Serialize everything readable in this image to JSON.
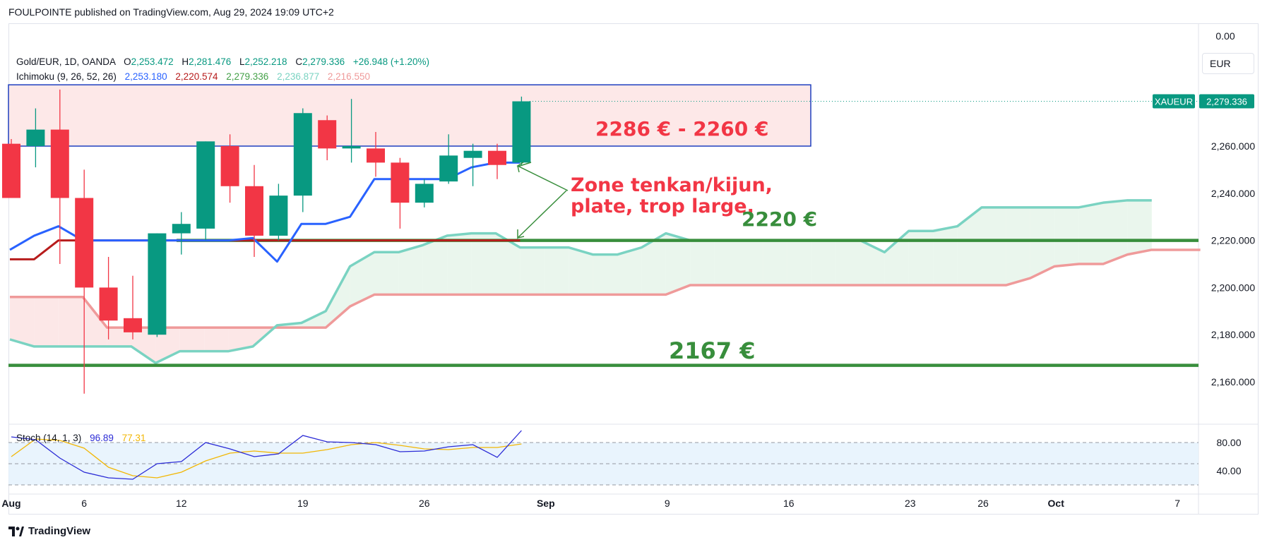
{
  "header": {
    "published_text": "FOULPOINTE published on TradingView.com, Aug 29, 2024 19:09 UTC+2"
  },
  "legend": {
    "symbol": "Gold/EUR, 1D, OANDA",
    "o_label": "O",
    "o_value": "2,253.472",
    "h_label": "H",
    "h_value": "2,281.476",
    "l_label": "L",
    "l_value": "2,252.218",
    "c_label": "C",
    "c_value": "2,279.336",
    "change": "+26.948 (+1.20%)",
    "ichimoku_label": "Ichimoku (9, 26, 52, 26)",
    "ichimoku_values": [
      "2,253.180",
      "2,220.574",
      "2,279.336",
      "2,236.877",
      "2,216.550"
    ],
    "stoch_label": "Stoch (14, 1, 3)",
    "stoch_values": [
      "96.89",
      "77.31"
    ]
  },
  "currency_button": "EUR",
  "price_tag": {
    "symbol": "XAUEUR",
    "value": "2,279.336"
  },
  "top_axis_value": "0.00",
  "annotations": {
    "zone_label": "2286 € - 2260 €",
    "comment_line1": "Zone tenkan/kijun,",
    "comment_line2": "plate, trop large.",
    "level_2220": "2220 €",
    "level_2167": "2167 €"
  },
  "footer": {
    "brand": "TradingView"
  },
  "colors": {
    "up": "#089981",
    "down": "#f23645",
    "tenkan": "#2962ff",
    "kijun": "#b71c1c",
    "chikou": "#43a047",
    "span_a": "#7ad3c2",
    "span_b": "#ef9a9a",
    "level": "#388e3c",
    "zone_border": "#1e3fbf",
    "zone_fill": "#fde4e4",
    "stoch_k": "#2b2bd6",
    "stoch_d": "#f2b705"
  },
  "chart_data": {
    "type": "candlestick",
    "price_axis": {
      "ticks": [
        "2,260.000",
        "2,240.000",
        "2,220.000",
        "2,200.000",
        "2,180.000",
        "2,160.000"
      ],
      "tick_values": [
        2260,
        2240,
        2220,
        2200,
        2180,
        2160
      ],
      "ylim": [
        2143,
        2290
      ]
    },
    "x_axis": {
      "labels": [
        {
          "text": "Aug",
          "index": 0,
          "bold": true
        },
        {
          "text": "6",
          "index": 3
        },
        {
          "text": "12",
          "index": 7
        },
        {
          "text": "19",
          "index": 12
        },
        {
          "text": "26",
          "index": 17
        },
        {
          "text": "Sep",
          "index": 22,
          "bold": true
        },
        {
          "text": "9",
          "index": 27
        },
        {
          "text": "16",
          "index": 32
        },
        {
          "text": "23",
          "index": 37
        },
        {
          "text": "26",
          "index": 40
        },
        {
          "text": "Oct",
          "index": 43,
          "bold": true
        },
        {
          "text": "7",
          "index": 48
        }
      ]
    },
    "candles": [
      {
        "o": 2261,
        "h": 2263,
        "l": 2239,
        "c": 2238
      },
      {
        "o": 2260,
        "h": 2276,
        "l": 2251,
        "c": 2267
      },
      {
        "o": 2267,
        "h": 2284,
        "l": 2210,
        "c": 2238
      },
      {
        "o": 2238,
        "h": 2250,
        "l": 2155,
        "c": 2200
      },
      {
        "o": 2200,
        "h": 2213,
        "l": 2178,
        "c": 2186
      },
      {
        "o": 2187,
        "h": 2205,
        "l": 2178,
        "c": 2181
      },
      {
        "o": 2180,
        "h": 2223,
        "l": 2179,
        "c": 2223
      },
      {
        "o": 2223,
        "h": 2232,
        "l": 2214,
        "c": 2227
      },
      {
        "o": 2225,
        "h": 2262,
        "l": 2220,
        "c": 2262
      },
      {
        "o": 2260,
        "h": 2265,
        "l": 2236,
        "c": 2243
      },
      {
        "o": 2243,
        "h": 2252,
        "l": 2213,
        "c": 2222
      },
      {
        "o": 2222,
        "h": 2244,
        "l": 2220,
        "c": 2239
      },
      {
        "o": 2239,
        "h": 2276,
        "l": 2232,
        "c": 2274
      },
      {
        "o": 2271,
        "h": 2273,
        "l": 2254,
        "c": 2259
      },
      {
        "o": 2259,
        "h": 2280,
        "l": 2253,
        "c": 2260
      },
      {
        "o": 2259,
        "h": 2266,
        "l": 2247,
        "c": 2253
      },
      {
        "o": 2253,
        "h": 2255,
        "l": 2225,
        "c": 2236
      },
      {
        "o": 2236,
        "h": 2246,
        "l": 2234,
        "c": 2244
      },
      {
        "o": 2245,
        "h": 2265,
        "l": 2244,
        "c": 2256
      },
      {
        "o": 2255,
        "h": 2261,
        "l": 2243,
        "c": 2258
      },
      {
        "o": 2258,
        "h": 2261,
        "l": 2246,
        "c": 2252
      },
      {
        "o": 2253,
        "h": 2281,
        "l": 2252,
        "c": 2279
      }
    ],
    "tenkan": [
      2216,
      2222,
      2226,
      2220,
      2220,
      2220,
      2220,
      2220,
      2220,
      2220,
      2221,
      2211,
      2227,
      2227,
      2230,
      2246,
      2246,
      2246,
      2246,
      2251,
      2253,
      2253
    ],
    "kijun": [
      2212,
      2212,
      2220,
      2220,
      2220,
      2220,
      2220,
      2220,
      2220,
      2220,
      2220,
      2220,
      2220,
      2220,
      2220,
      2220,
      2220,
      2220,
      2220,
      2220,
      2220,
      2220
    ],
    "senkou_a": [
      2178,
      2175,
      2175,
      2175,
      2175,
      2175,
      2168,
      2173,
      2173,
      2173,
      2175,
      2184,
      2185,
      2190,
      2209,
      2215,
      2215,
      2218,
      2222,
      2223,
      2223,
      2217,
      2217,
      2217,
      2214,
      2214,
      2217,
      2223,
      2220,
      2220,
      2220,
      2220,
      2220,
      2220,
      2220,
      2220,
      2215,
      2224,
      2224,
      2226,
      2234,
      2234,
      2234,
      2234,
      2234,
      2236,
      2237,
      2237
    ],
    "senkou_b": [
      2196,
      2196,
      2196,
      2196,
      2183,
      2183,
      2183,
      2183,
      2183,
      2183,
      2183,
      2183,
      2183,
      2183,
      2192,
      2197,
      2197,
      2197,
      2197,
      2197,
      2197,
      2197,
      2197,
      2197,
      2197,
      2197,
      2197,
      2197,
      2201,
      2201,
      2201,
      2201,
      2201,
      2201,
      2201,
      2201,
      2201,
      2201,
      2201,
      2201,
      2201,
      2201,
      2204,
      2209,
      2210,
      2210,
      2214,
      2216,
      2216,
      2216
    ],
    "zone": {
      "top": 2286,
      "bottom": 2260
    },
    "levels": [
      2220,
      2167
    ],
    "stoch": {
      "axis_ticks": [
        "80.00",
        "40.00"
      ],
      "k": [
        88,
        84,
        58,
        38,
        30,
        28,
        50,
        53,
        80,
        71,
        60,
        64,
        90,
        81,
        80,
        77,
        67,
        68,
        74,
        77,
        59,
        97
      ],
      "d": [
        60,
        85,
        83,
        72,
        45,
        33,
        30,
        38,
        54,
        65,
        68,
        65,
        65,
        70,
        77,
        80,
        76,
        71,
        70,
        73,
        73,
        78
      ]
    }
  }
}
